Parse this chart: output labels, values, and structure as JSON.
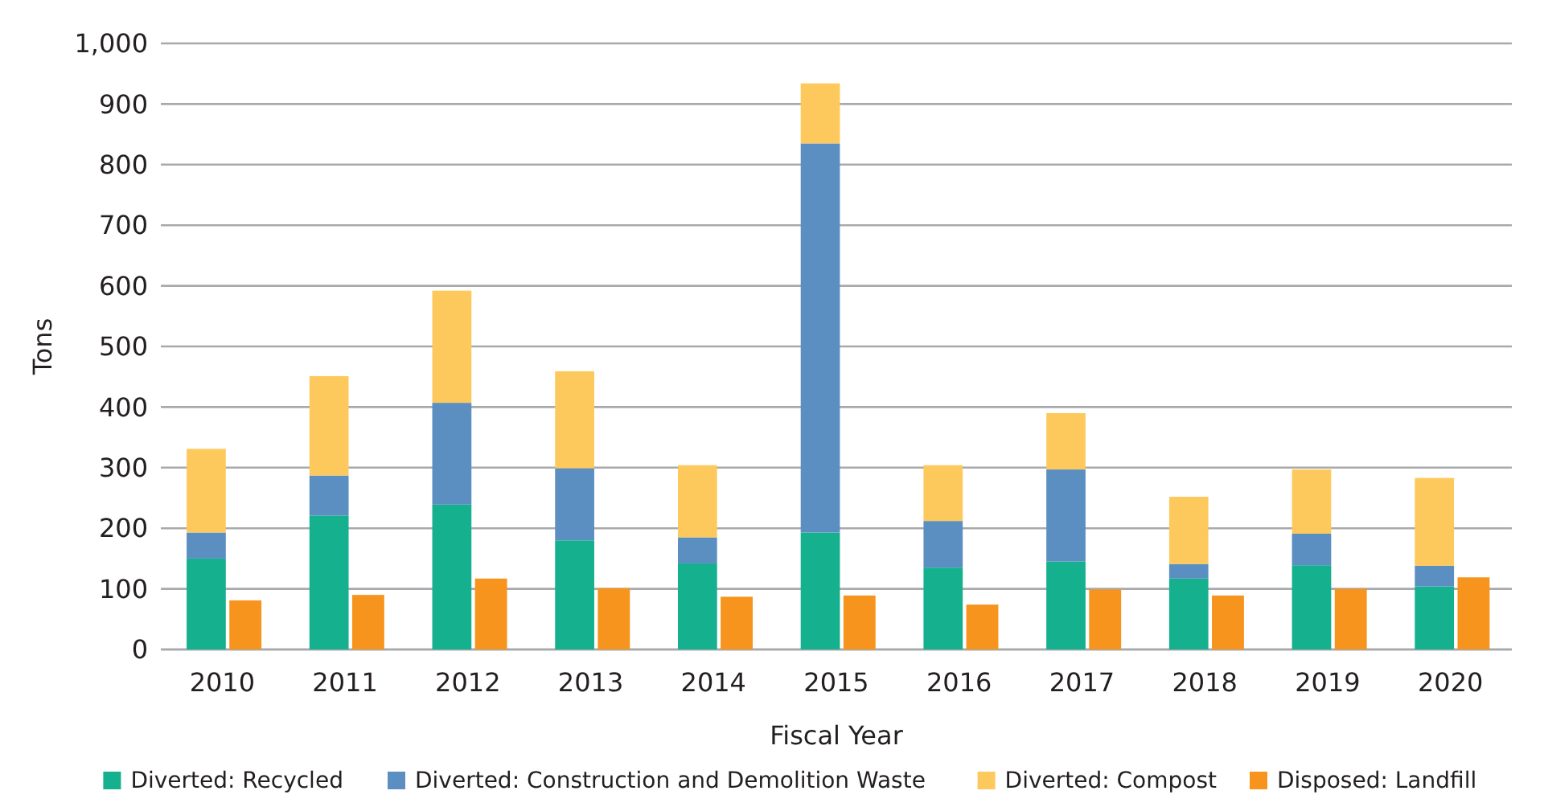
{
  "chart_data": [
    {
      "type": "bar",
      "xlabel": "Fiscal Year",
      "ylabel": "Tons",
      "categories": [
        "2010",
        "2011",
        "2012",
        "2013",
        "2014",
        "2015",
        "2016",
        "2017",
        "2018",
        "2019",
        "2020"
      ],
      "stacked": true,
      "grid": "y",
      "legend": "bottom",
      "ylim": [
        0,
        1000
      ],
      "yticks": [
        0,
        100,
        200,
        300,
        400,
        500,
        600,
        700,
        800,
        900,
        {
          "value": 1000,
          "label": "1,000"
        }
      ],
      "series": [
        {
          "name": "Diverted: Recycled",
          "color": "#15b08e",
          "values": [
            150,
            221,
            239,
            180,
            142,
            193,
            135,
            145,
            117,
            139,
            104
          ]
        },
        {
          "name": "Diverted: Construction and Demolition Waste",
          "color": "#5b8fc2",
          "values": [
            43,
            66,
            168,
            119,
            43,
            642,
            77,
            152,
            24,
            52,
            34
          ]
        },
        {
          "name": "Diverted: Compost",
          "color": "#fec95c",
          "values": [
            138,
            164,
            185,
            160,
            119,
            99,
            92,
            93,
            111,
            106,
            145
          ]
        }
      ]
    },
    {
      "type": "bar",
      "categories": [
        "2010",
        "2011",
        "2012",
        "2013",
        "2014",
        "2015",
        "2016",
        "2017",
        "2018",
        "2019",
        "2020"
      ],
      "legend": "bottom",
      "tick_labels": false,
      "ylim": [
        0,
        1000
      ],
      "series": [
        {
          "name": "Disposed: Landfill",
          "color": "#f7941d",
          "values": [
            81,
            90,
            117,
            101,
            87,
            89,
            74,
            99,
            89,
            100,
            119
          ]
        }
      ]
    }
  ]
}
